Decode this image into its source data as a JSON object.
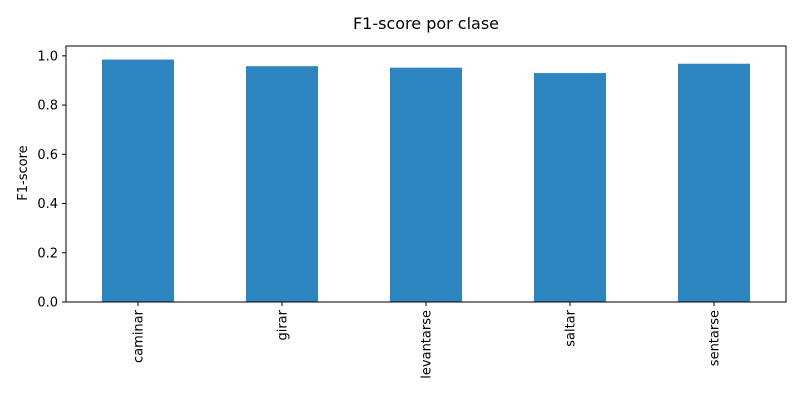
{
  "chart_data": {
    "type": "bar",
    "title": "F1-score por clase",
    "xlabel": "",
    "ylabel": "F1-score",
    "categories": [
      "caminar",
      "girar",
      "levantarse",
      "saltar",
      "sentarse"
    ],
    "values": [
      0.985,
      0.958,
      0.952,
      0.93,
      0.968
    ],
    "ylim": [
      0,
      1.04
    ],
    "yticks": [
      0.0,
      0.2,
      0.4,
      0.6,
      0.8,
      1.0
    ],
    "ytick_labels": [
      "0.0",
      "0.2",
      "0.4",
      "0.6",
      "0.8",
      "1.0"
    ],
    "bar_color": "#2e86c1",
    "grid": false,
    "legend": false
  }
}
